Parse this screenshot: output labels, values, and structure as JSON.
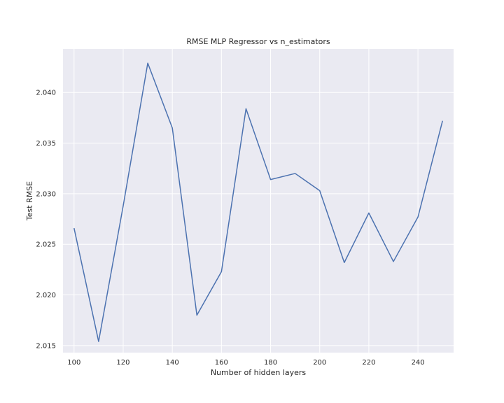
{
  "chart_data": {
    "type": "line",
    "title": "RMSE MLP Regressor vs n_estimators",
    "xlabel": "Number of hidden layers",
    "ylabel": "Test RMSE",
    "xlim": [
      95.5,
      254.5
    ],
    "ylim": [
      2.0143,
      2.0443
    ],
    "xticks": [
      100,
      120,
      140,
      160,
      180,
      200,
      220,
      240
    ],
    "xtick_labels": [
      "100",
      "120",
      "140",
      "160",
      "180",
      "200",
      "220",
      "240"
    ],
    "yticks": [
      2.015,
      2.02,
      2.025,
      2.03,
      2.035,
      2.04
    ],
    "ytick_labels": [
      "2.015",
      "2.020",
      "2.025",
      "2.030",
      "2.035",
      "2.040"
    ],
    "grid": true,
    "legend": "none",
    "series": [
      {
        "color": "#4c72b0",
        "x": [
          100,
          110,
          120,
          130,
          140,
          150,
          160,
          170,
          180,
          190,
          200,
          210,
          220,
          230,
          240,
          250
        ],
        "y": [
          2.0266,
          2.0154,
          2.0288,
          2.0429,
          2.0365,
          2.018,
          2.0223,
          2.0384,
          2.0314,
          2.032,
          2.0303,
          2.0232,
          2.0281,
          2.0233,
          2.0277,
          2.0372
        ]
      }
    ]
  },
  "colors": {
    "plot_background": "#eaeaf2",
    "grid": "#ffffff",
    "text": "#262626"
  }
}
